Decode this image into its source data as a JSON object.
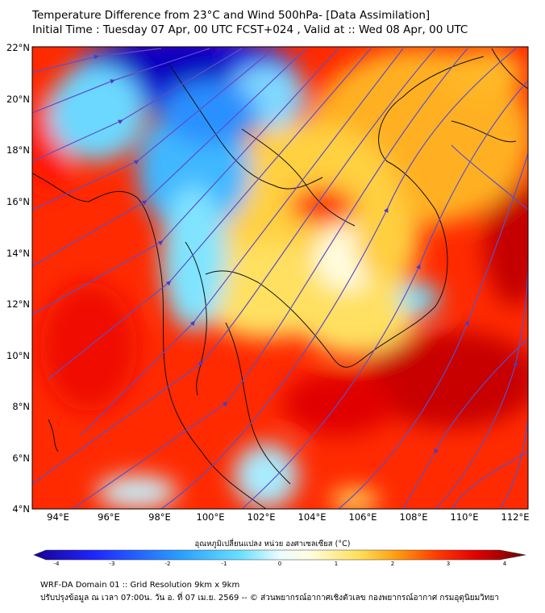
{
  "header": {
    "title_line1": "Temperature Difference from 23°C and Wind 500hPa- [Data Assimilation]",
    "title_line2": "Initial Time : Tuesday 07 Apr, 00 UTC FCST+024 , Valid at ::  Wed 08 Apr, 00 UTC"
  },
  "map": {
    "lat_ticks": [
      "22°N",
      "20°N",
      "18°N",
      "16°N",
      "14°N",
      "12°N",
      "10°N",
      "8°N",
      "6°N",
      "4°N"
    ],
    "lon_ticks": [
      "94°E",
      "96°E",
      "98°E",
      "100°E",
      "102°E",
      "104°E",
      "106°E",
      "108°E",
      "110°E",
      "112°E"
    ],
    "lat_range": [
      4,
      22
    ],
    "lon_range": [
      93,
      112.5
    ],
    "streamline_color": "#5b4fc9"
  },
  "colorbar": {
    "title": "อุณหภูมิเปลี่ยนแปลง หน่วย องศาเซลเซียส (°C)",
    "ticks": [
      "-4",
      "-3",
      "-2",
      "-1",
      "0",
      "1",
      "2",
      "3",
      "4"
    ],
    "colors": [
      "#1a0090",
      "#1f24ff",
      "#2aa0ff",
      "#69e0ff",
      "#eafcff",
      "#fffde0",
      "#ffe15a",
      "#ff9a10",
      "#ff3a00",
      "#e00000",
      "#6e0000"
    ]
  },
  "footer": {
    "line1": "WRF-DA Domain 01 :: Grid Resolution 9km x 9km",
    "line2": "ปรับปรุงข้อมูล ณ เวลา 07:00น. วัน อ. ที่ 07 เม.ย. 2569 -- © ส่วนพยากรณ์อากาศเชิงตัวเลข กองพยากรณ์อากาศ กรมอุตุนิยมวิทยา"
  }
}
